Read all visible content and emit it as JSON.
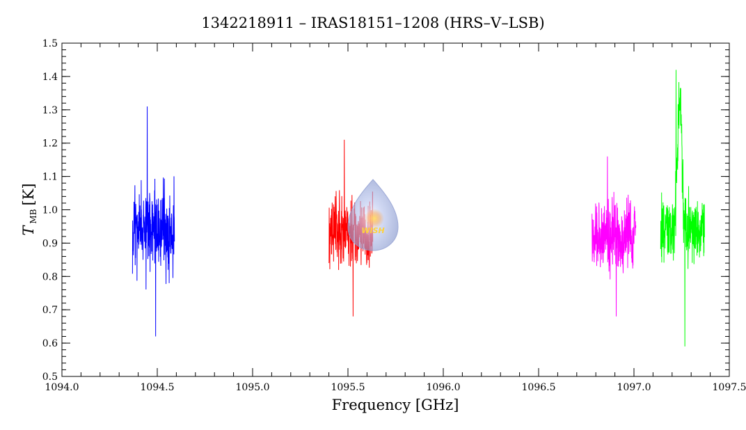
{
  "chart_data": {
    "type": "line",
    "title": "1342218911 – IRAS18151–1208 (HRS–V–LSB)",
    "xlabel": "Frequency [GHz]",
    "ylabel_main": "T",
    "ylabel_sub": "MB",
    "ylabel_unit": "[K]",
    "xlim": [
      1094.0,
      1097.5
    ],
    "ylim": [
      0.5,
      1.5
    ],
    "x_ticks": [
      1094.0,
      1094.5,
      1095.0,
      1095.5,
      1096.0,
      1096.5,
      1097.0,
      1097.5
    ],
    "x_tick_labels": [
      "1094.0",
      "1094.5",
      "1095.0",
      "1095.5",
      "1096.0",
      "1096.5",
      "1097.0",
      "1097.5"
    ],
    "y_ticks": [
      0.5,
      0.6,
      0.7,
      0.8,
      0.9,
      1.0,
      1.1,
      1.2,
      1.3,
      1.4,
      1.5
    ],
    "y_tick_labels": [
      "0.5",
      "0.6",
      "0.7",
      "0.8",
      "0.9",
      "1.0",
      "1.1",
      "1.2",
      "1.3",
      "1.4",
      "1.5"
    ],
    "grid": false,
    "series": [
      {
        "color": "#0000ff",
        "x_range": [
          1094.37,
          1094.59
        ],
        "mean": 0.94,
        "noise": 0.09,
        "min": 0.62,
        "max": 1.31,
        "seed": 11
      },
      {
        "color": "#ff0000",
        "x_range": [
          1095.4,
          1095.63
        ],
        "mean": 0.93,
        "noise": 0.07,
        "min": 0.68,
        "max": 1.21,
        "seed": 23
      },
      {
        "color": "#ff00ff",
        "x_range": [
          1096.78,
          1097.01
        ],
        "mean": 0.92,
        "noise": 0.07,
        "min": 0.68,
        "max": 1.16,
        "seed": 37
      },
      {
        "color": "#00ff00",
        "x_range": [
          1097.14,
          1097.37
        ],
        "mean": 0.94,
        "noise": 0.07,
        "min": 0.59,
        "max": 1.42,
        "seed": 53,
        "peak": {
          "center": 1097.24,
          "width": 0.012,
          "height": 0.38
        }
      }
    ]
  },
  "watermark": {
    "text": "WISH",
    "icon": "wish-droplet-logo"
  }
}
